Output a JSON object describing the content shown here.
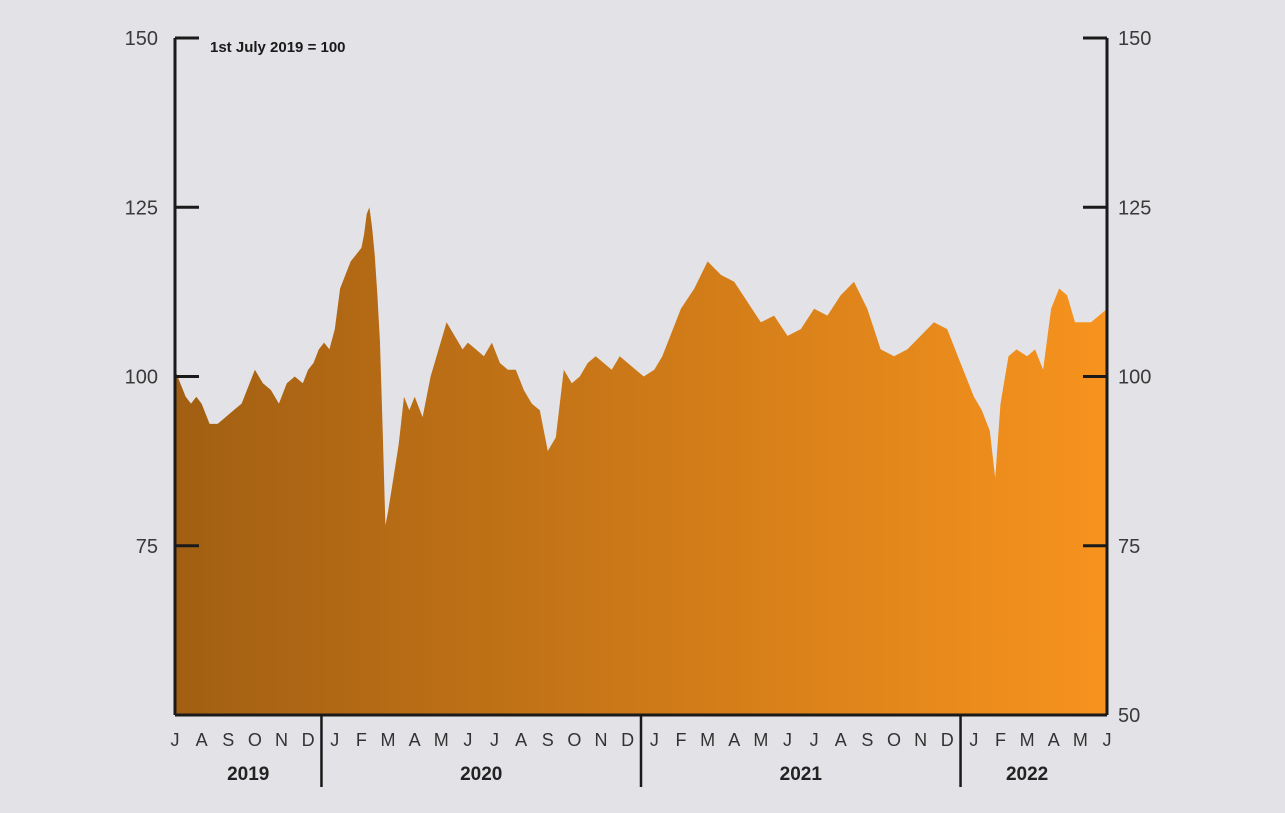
{
  "chart_data": {
    "type": "area",
    "annotation": "1st July 2019 = 100",
    "title": "",
    "xlabel": "",
    "ylabel": "",
    "ylim": [
      50,
      150
    ],
    "y_ticks_left": [
      "150",
      "125",
      "100",
      "75"
    ],
    "y_ticks_right": [
      "150",
      "125",
      "100",
      "75",
      "50"
    ],
    "y_tick_values_left": [
      150,
      125,
      100,
      75
    ],
    "y_tick_values_right": [
      150,
      125,
      100,
      75,
      50
    ],
    "months": [
      "J",
      "A",
      "S",
      "O",
      "N",
      "D",
      "J",
      "F",
      "M",
      "A",
      "M",
      "J",
      "J",
      "A",
      "S",
      "O",
      "N",
      "D",
      "J",
      "F",
      "M",
      "A",
      "M",
      "J",
      "J",
      "A",
      "S",
      "O",
      "N",
      "D",
      "J",
      "F",
      "M",
      "A",
      "M",
      "J"
    ],
    "years": [
      {
        "label": "2019",
        "from": 0,
        "to": 6
      },
      {
        "label": "2020",
        "from": 6,
        "to": 18
      },
      {
        "label": "2021",
        "from": 18,
        "to": 30
      },
      {
        "label": "2022",
        "from": 30,
        "to": 35
      }
    ],
    "colors": {
      "start": "#a25f12",
      "end": "#f7931e",
      "axis": "#1a1a1a"
    },
    "grid": false,
    "series": [
      {
        "x_month_index": [
          0,
          0.2,
          0.4,
          0.6,
          0.8,
          1.0,
          1.3,
          1.6,
          1.9,
          2.2,
          2.5,
          2.8,
          3.0,
          3.3,
          3.6,
          3.9,
          4.2,
          4.5,
          4.8,
          5.0,
          5.2,
          5.4,
          5.6,
          5.8,
          6.0,
          6.2,
          6.4,
          6.6,
          6.8,
          7.0,
          7.1,
          7.2,
          7.3,
          7.4,
          7.5,
          7.6,
          7.7,
          7.8,
          7.9,
          8.0,
          8.2,
          8.4,
          8.6,
          8.8,
          9.0,
          9.3,
          9.6,
          9.9,
          10.2,
          10.5,
          10.8,
          11.0,
          11.3,
          11.6,
          11.9,
          12.2,
          12.5,
          12.8,
          13.1,
          13.4,
          13.7,
          14.0,
          14.3,
          14.6,
          14.9,
          15.2,
          15.5,
          15.8,
          16.1,
          16.4,
          16.7,
          17.0,
          17.3,
          17.6,
          18.0,
          18.3,
          18.6,
          19.0,
          19.5,
          20.0,
          20.5,
          21.0,
          21.5,
          22.0,
          22.5,
          23.0,
          23.5,
          24.0,
          24.5,
          25.0,
          25.5,
          26.0,
          26.5,
          27.0,
          27.5,
          28.0,
          28.5,
          29.0,
          29.5,
          30.0,
          30.3,
          30.6,
          30.8,
          31.0,
          31.3,
          31.6,
          32.0,
          32.3,
          32.6,
          32.9,
          33.2,
          33.5,
          33.8,
          34.1,
          34.4,
          34.7,
          35.0
        ],
        "values": [
          101,
          99,
          97,
          96,
          97,
          96,
          93,
          93,
          94,
          95,
          96,
          99,
          101,
          99,
          98,
          96,
          99,
          100,
          99,
          101,
          102,
          104,
          105,
          104,
          107,
          113,
          115,
          117,
          118,
          119,
          121,
          124,
          125,
          122,
          118,
          112,
          105,
          92,
          78,
          80,
          85,
          90,
          97,
          95,
          97,
          94,
          100,
          104,
          108,
          106,
          104,
          105,
          104,
          103,
          105,
          102,
          101,
          101,
          98,
          96,
          95,
          89,
          91,
          101,
          99,
          100,
          102,
          103,
          102,
          101,
          103,
          102,
          101,
          100,
          101,
          103,
          106,
          110,
          113,
          117,
          115,
          114,
          111,
          108,
          109,
          106,
          107,
          110,
          109,
          112,
          114,
          110,
          104,
          103,
          104,
          106,
          108,
          107,
          102,
          97,
          95,
          92,
          85,
          96,
          103,
          104,
          103,
          104,
          101,
          110,
          113,
          112,
          108,
          108,
          108,
          109,
          110
        ]
      }
    ]
  }
}
